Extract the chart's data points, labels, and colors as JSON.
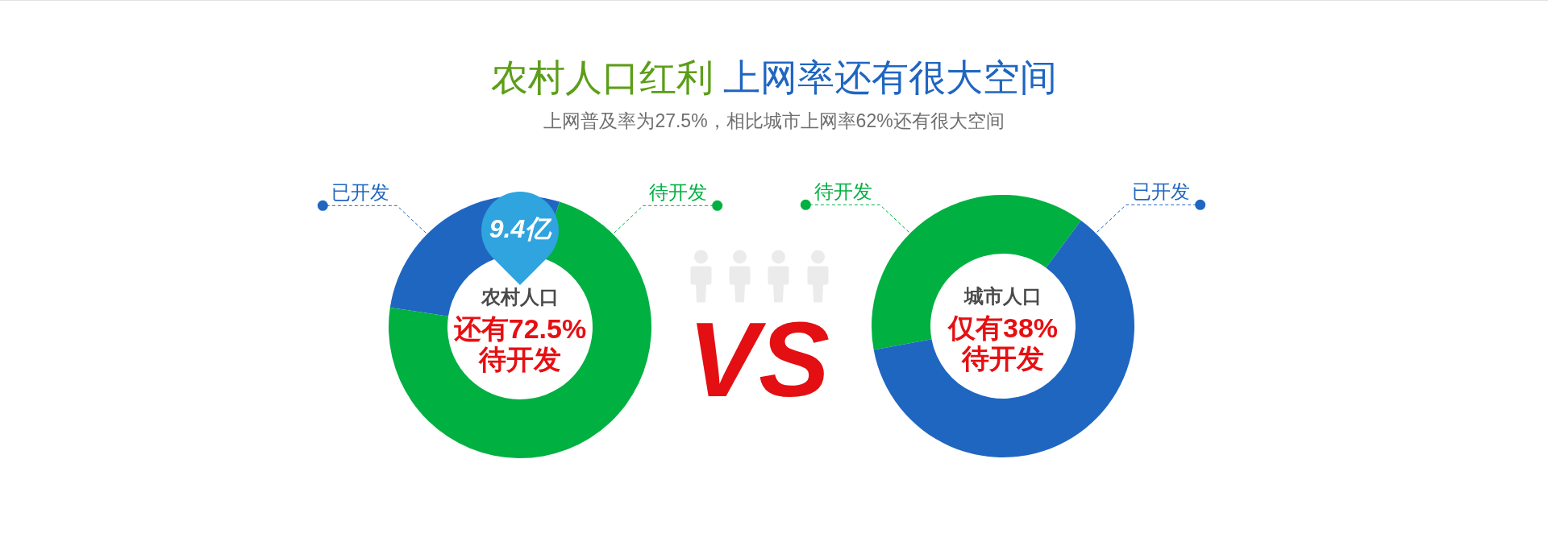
{
  "chart_data": [
    {
      "type": "donut",
      "title": "农村人口红利 上网率还有很大空间",
      "subtitle": "上网普及率为27.5%，相比城市上网率62%还有很大空间",
      "categories": [
        "已开发",
        "待开发"
      ],
      "values": [
        27.5,
        72.5
      ],
      "colors": [
        "#1f66c1",
        "#00b041"
      ],
      "annotations": [
        "农村人口",
        "还有72.5%",
        "待开发",
        "9.4亿",
        "VS"
      ]
    },
    {
      "type": "donut",
      "categories": [
        "待开发",
        "已开发"
      ],
      "values": [
        38,
        62
      ],
      "colors": [
        "#00b041",
        "#1f66c1"
      ],
      "annotations": [
        "城市人口",
        "仅有38%",
        "待开发"
      ]
    }
  ]
}
